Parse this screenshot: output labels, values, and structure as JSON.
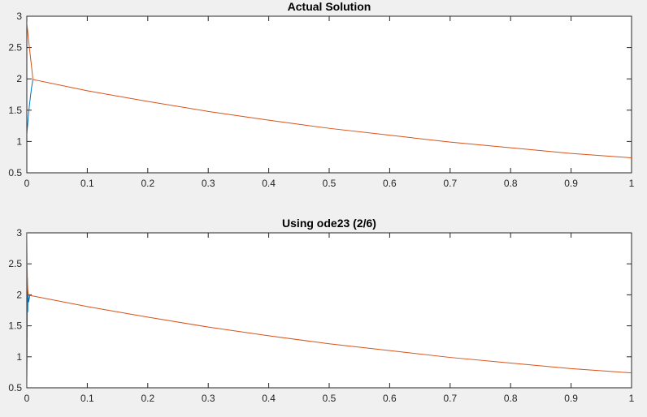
{
  "chart_data": [
    {
      "type": "line",
      "title": "Actual Solution",
      "xlabel": "",
      "ylabel": "",
      "xlim": [
        0,
        1
      ],
      "ylim": [
        0.5,
        3
      ],
      "grid": false,
      "xticks": [
        "0",
        "0.1",
        "0.2",
        "0.3",
        "0.4",
        "0.5",
        "0.6",
        "0.7",
        "0.8",
        "0.9",
        "1"
      ],
      "yticks": [
        "0.5",
        "1",
        "1.5",
        "2",
        "2.5",
        "3"
      ],
      "series": [
        {
          "color": "#0072bd",
          "x": [
            0,
            0.002,
            0.004,
            0.006,
            0.008,
            0.01
          ],
          "y": [
            1.1,
            1.35,
            1.55,
            1.72,
            1.87,
            1.99
          ]
        },
        {
          "color": "#d95319",
          "x": [
            0,
            0.002,
            0.004,
            0.006,
            0.008,
            0.01,
            0.1,
            0.2,
            0.3,
            0.4,
            0.5,
            0.6,
            0.7,
            0.8,
            0.9,
            1.0
          ],
          "y": [
            2.9,
            2.7,
            2.52,
            2.35,
            2.18,
            1.99,
            1.81,
            1.64,
            1.48,
            1.34,
            1.21,
            1.1,
            0.99,
            0.9,
            0.81,
            0.74
          ]
        }
      ]
    },
    {
      "type": "line",
      "title": "Using ode23 (2/6)",
      "xlabel": "",
      "ylabel": "",
      "xlim": [
        0,
        1
      ],
      "ylim": [
        0.5,
        3
      ],
      "grid": false,
      "xticks": [
        "0",
        "0.1",
        "0.2",
        "0.3",
        "0.4",
        "0.5",
        "0.6",
        "0.7",
        "0.8",
        "0.9",
        "1"
      ],
      "yticks": [
        "0.5",
        "1",
        "1.5",
        "2",
        "2.5",
        "3"
      ],
      "series": [
        {
          "color": "#0072bd",
          "x": [
            0,
            0.0005,
            0.001,
            0.0015,
            0.002,
            0.003,
            0.005
          ],
          "y": [
            0.52,
            1.05,
            2.27,
            1.72,
            2.05,
            1.88,
            1.99
          ]
        },
        {
          "color": "#d95319",
          "x": [
            0,
            0.0005,
            0.001,
            0.0015,
            0.002,
            0.003,
            0.005,
            0.1,
            0.2,
            0.3,
            0.4,
            0.5,
            0.6,
            0.7,
            0.8,
            0.9,
            1.0
          ],
          "y": [
            3.0,
            2.55,
            2.2,
            2.1,
            2.02,
            1.99,
            1.99,
            1.81,
            1.64,
            1.48,
            1.34,
            1.21,
            1.1,
            0.99,
            0.9,
            0.81,
            0.74
          ]
        }
      ]
    }
  ]
}
